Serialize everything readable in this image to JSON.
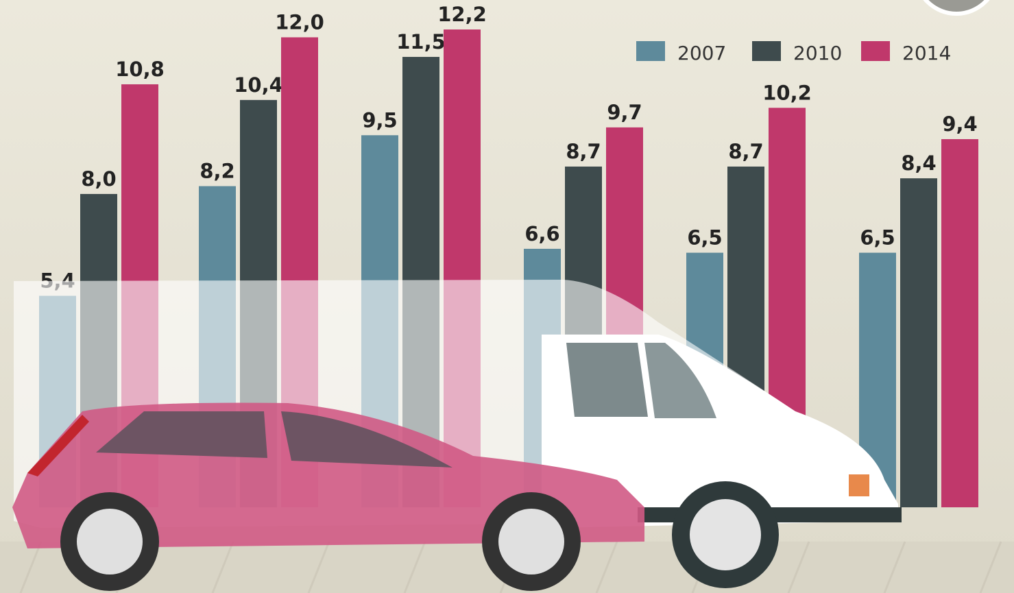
{
  "chart_data": {
    "type": "bar",
    "categories": [
      null,
      null,
      null,
      null,
      null,
      null
    ],
    "series": [
      {
        "name": "2007",
        "color": "#5e8a9b",
        "values": [
          5.4,
          8.2,
          9.5,
          6.6,
          6.5,
          6.5
        ],
        "value_labels": [
          "5,4",
          "8,2",
          "9,5",
          "6,6",
          "6,5",
          "6,5"
        ]
      },
      {
        "name": "2010",
        "color": "#3e4b4d",
        "values": [
          8.0,
          10.4,
          11.5,
          8.7,
          8.7,
          8.4
        ],
        "value_labels": [
          "8,0",
          "10,4",
          "11,5",
          "8,7",
          "8,7",
          "8,4"
        ]
      },
      {
        "name": "2014",
        "color": "#c0386b",
        "values": [
          10.8,
          12.0,
          12.2,
          9.7,
          10.2,
          9.4
        ],
        "value_labels": [
          "10,8",
          "12,0",
          "12,2",
          "9,7",
          "10,2",
          "9,4"
        ]
      }
    ],
    "legend": "top-right"
  }
}
